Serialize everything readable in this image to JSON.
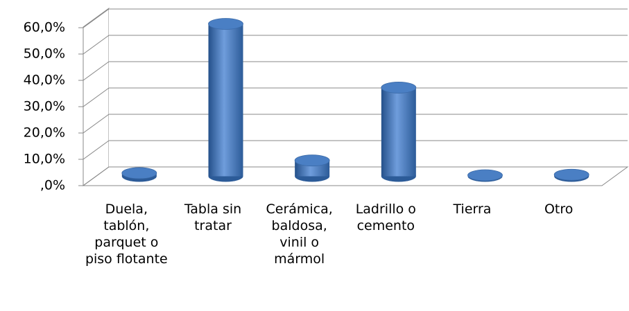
{
  "chart_data": {
    "type": "bar3d",
    "categories": [
      "Duela, tablón, parquet o piso flotante",
      "Tabla sin tratar",
      "Cerámica, baldosa, vinil o mármol",
      "Ladrillo o cemento",
      "Tierra",
      "Otro"
    ],
    "values": [
      1.2,
      57.9,
      6.0,
      33.7,
      0.4,
      0.6
    ],
    "color": "#4f81bd",
    "ylim": [
      0,
      60
    ],
    "yticks": [
      {
        "value": 0,
        "label": ",0%"
      },
      {
        "value": 10,
        "label": "10,0%"
      },
      {
        "value": 20,
        "label": "20,0%"
      },
      {
        "value": 30,
        "label": "30,0%"
      },
      {
        "value": 40,
        "label": "40,0%"
      },
      {
        "value": 50,
        "label": "50,0%"
      },
      {
        "value": 60,
        "label": "60,0%"
      }
    ],
    "grid": true
  }
}
